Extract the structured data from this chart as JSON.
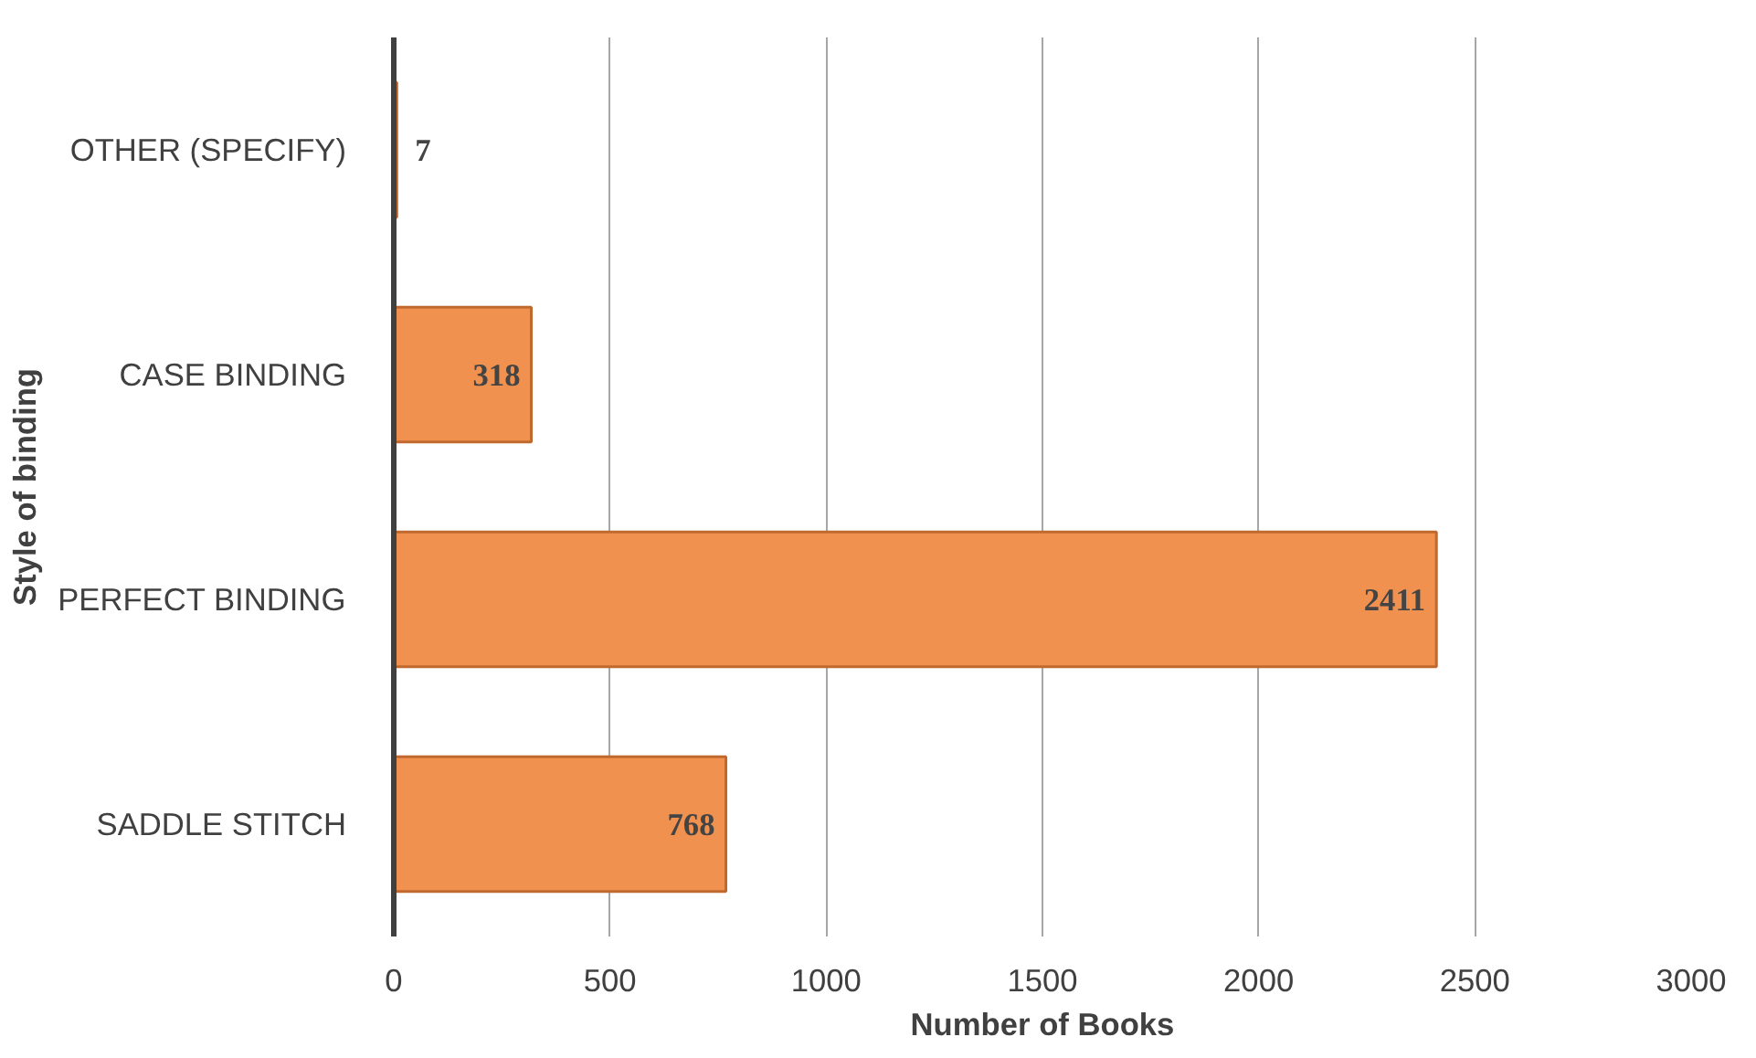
{
  "chart_data": {
    "type": "bar",
    "orientation": "horizontal",
    "xlabel": "Number of Books",
    "ylabel": "Style of binding",
    "categories": [
      "OTHER (SPECIFY)",
      "CASE BINDING",
      "PERFECT BINDING",
      "SADDLE STITCH"
    ],
    "values": [
      7,
      318,
      2411,
      768
    ],
    "color": "#f0914f",
    "xlim": [
      0,
      3000
    ],
    "xticks": [
      0,
      500,
      1000,
      1500,
      2000,
      2500,
      3000
    ],
    "grid": "x",
    "data_labels": true
  }
}
